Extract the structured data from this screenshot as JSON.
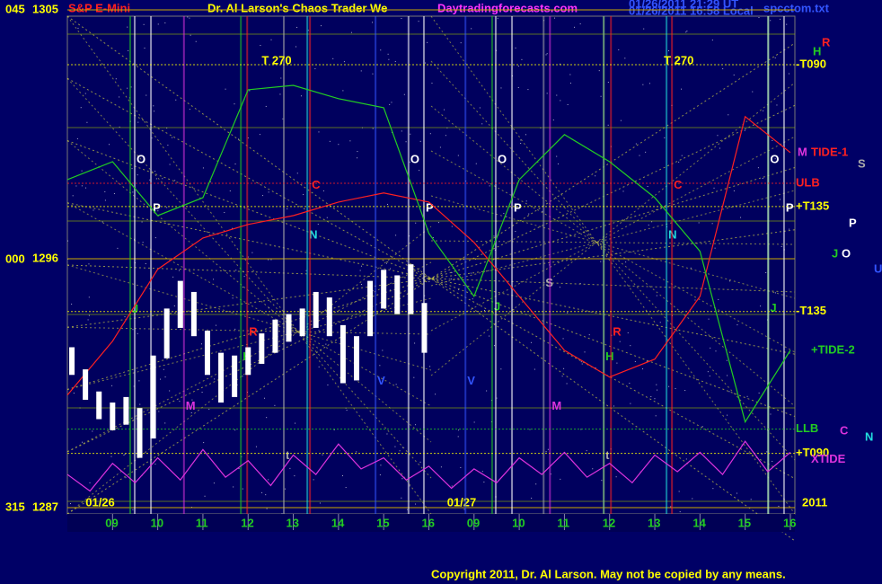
{
  "chart_data": {
    "type": "price-bars",
    "instrument": "S&P E-Mini",
    "title": "Dr. Al Larson's Chaos Trader We",
    "site": "Daytradingforecasts.com",
    "timestamps": [
      "01/26/2011 21:29 UT",
      "01/26/2011 16:58 Local"
    ],
    "file": "spcctom.txt",
    "copyright": "Copyright 2011, Dr. Al Larson. May not be copied by any means.",
    "year": "2011",
    "xlim": [
      0,
      16.1
    ],
    "ylim": [
      1287,
      1305
    ],
    "yticks": [
      1305,
      1296,
      1287
    ],
    "angle_labels": [
      "045",
      "000",
      "315"
    ],
    "xticks": [
      {
        "value": 1,
        "label": "09"
      },
      {
        "value": 2,
        "label": "10"
      },
      {
        "value": 3,
        "label": "11"
      },
      {
        "value": 4,
        "label": "12"
      },
      {
        "value": 5,
        "label": "13"
      },
      {
        "value": 6,
        "label": "14"
      },
      {
        "value": 7,
        "label": "15"
      },
      {
        "value": 8,
        "label": "16"
      },
      {
        "value": 9,
        "label": "09"
      },
      {
        "value": 10,
        "label": "10"
      },
      {
        "value": 11,
        "label": "11"
      },
      {
        "value": 12,
        "label": "12"
      },
      {
        "value": 13,
        "label": "13"
      },
      {
        "value": 14,
        "label": "14"
      },
      {
        "value": 15,
        "label": "15"
      },
      {
        "value": 16,
        "label": "16"
      }
    ],
    "dates": [
      {
        "value": 0.8,
        "label": "01/26"
      },
      {
        "value": 8.8,
        "label": "01/27"
      }
    ],
    "grid": true,
    "price": {
      "color": "#ffffff",
      "x": [
        0.1,
        0.4,
        0.7,
        1.0,
        1.3,
        1.6,
        1.9,
        2.2,
        2.5,
        2.8,
        3.1,
        3.4,
        3.7,
        4.0,
        4.3,
        4.6,
        4.9,
        5.2,
        5.5,
        5.8,
        6.1,
        6.4,
        6.7,
        7.0,
        7.3,
        7.6,
        7.9
      ],
      "high": [
        1292.8,
        1292.0,
        1291.2,
        1290.8,
        1291.0,
        1290.6,
        1292.5,
        1294.2,
        1295.2,
        1294.8,
        1293.4,
        1292.6,
        1292.5,
        1292.8,
        1293.3,
        1293.8,
        1294.0,
        1294.2,
        1294.8,
        1294.6,
        1293.6,
        1293.2,
        1295.2,
        1295.6,
        1295.4,
        1295.8,
        1294.4
      ],
      "low": [
        1291.8,
        1290.9,
        1290.2,
        1289.8,
        1290.0,
        1288.8,
        1289.5,
        1292.4,
        1293.5,
        1293.2,
        1291.8,
        1290.8,
        1291.0,
        1291.8,
        1292.2,
        1292.6,
        1293.0,
        1293.2,
        1293.5,
        1293.2,
        1291.5,
        1291.6,
        1293.2,
        1294.2,
        1294.0,
        1294.0,
        1292.6
      ]
    },
    "series": [
      {
        "name": "TIDE-1",
        "color": "#ff2020",
        "x": [
          0,
          1,
          2,
          3,
          4,
          5,
          6,
          7,
          8,
          9,
          10,
          11,
          12,
          13,
          14,
          15,
          16
        ],
        "values": [
          1291.07,
          1293.02,
          1295.62,
          1296.75,
          1297.24,
          1297.56,
          1298.05,
          1298.38,
          1298.05,
          1296.59,
          1294.64,
          1292.69,
          1291.72,
          1292.37,
          1294.64,
          1301.14,
          1299.84
        ]
      },
      {
        "name": "+TIDE-2",
        "color": "#22cc22",
        "x": [
          0,
          1,
          2,
          3,
          4,
          5,
          6,
          7,
          8,
          9,
          10,
          11,
          12,
          13,
          14,
          15,
          16
        ],
        "values": [
          1298.86,
          1299.51,
          1297.56,
          1298.21,
          1302.11,
          1302.27,
          1301.79,
          1301.46,
          1296.92,
          1294.64,
          1298.86,
          1300.49,
          1299.51,
          1298.21,
          1296.27,
          1290.1,
          1292.69
        ]
      },
      {
        "name": "XTIDE",
        "color": "#dd33dd",
        "x": [
          0,
          0.5,
          1,
          1.5,
          2,
          2.5,
          3,
          3.5,
          4,
          4.5,
          5,
          5.5,
          6,
          6.5,
          7,
          7.5,
          8,
          8.5,
          9,
          9.5,
          10,
          10.5,
          11,
          11.5,
          12,
          12.5,
          13,
          13.5,
          14,
          14.5,
          15,
          15.5,
          16
        ],
        "values": [
          1288.2,
          1287.6,
          1288.6,
          1287.9,
          1288.8,
          1288.0,
          1289.1,
          1288.1,
          1288.7,
          1287.8,
          1288.9,
          1288.2,
          1289.3,
          1288.4,
          1288.8,
          1288.0,
          1288.5,
          1287.7,
          1288.4,
          1287.9,
          1288.8,
          1288.2,
          1289.0,
          1288.1,
          1288.6,
          1287.9,
          1288.9,
          1288.3,
          1289.0,
          1288.2,
          1289.4,
          1288.3,
          1289.0
        ]
      }
    ],
    "levels": [
      {
        "label": "-T090",
        "value": 1303.02,
        "color": "#ffff00"
      },
      {
        "label": "ULB",
        "value": 1298.73,
        "color": "#ff2020"
      },
      {
        "label": "+T135",
        "value": 1297.89,
        "color": "#ffff00"
      },
      {
        "label": "-T135",
        "value": 1294.09,
        "color": "#ffff00"
      },
      {
        "label": "LLB",
        "value": 1289.84,
        "color": "#22cc22"
      },
      {
        "label": "+T090",
        "value": 1288.96,
        "color": "#ffff00"
      }
    ],
    "events": [
      {
        "label": "O",
        "x": 1.49,
        "y": 1299.58,
        "color": "#ffffff"
      },
      {
        "label": "P",
        "x": 1.85,
        "y": 1297.82,
        "color": "#ffffff"
      },
      {
        "label": "J",
        "x": 1.39,
        "y": 1294.16,
        "color": "#22cc22"
      },
      {
        "label": "M",
        "x": 2.58,
        "y": 1290.65,
        "color": "#dd33dd"
      },
      {
        "label": "H",
        "x": 3.84,
        "y": 1292.44,
        "color": "#22cc22"
      },
      {
        "label": "R",
        "x": 3.98,
        "y": 1293.34,
        "color": "#ff2020"
      },
      {
        "label": "t",
        "x": 4.79,
        "y": 1288.86,
        "color": "#aaaaaa"
      },
      {
        "label": "N",
        "x": 5.31,
        "y": 1296.85,
        "color": "#22dddd"
      },
      {
        "label": "C",
        "x": 5.37,
        "y": 1298.64,
        "color": "#ff2020"
      },
      {
        "label": "V",
        "x": 6.82,
        "y": 1291.56,
        "color": "#3355ff"
      },
      {
        "label": "O",
        "x": 7.55,
        "y": 1299.58,
        "color": "#ffffff"
      },
      {
        "label": "P",
        "x": 7.89,
        "y": 1297.82,
        "color": "#ffffff"
      },
      {
        "label": "V",
        "x": 8.81,
        "y": 1291.56,
        "color": "#3355ff"
      },
      {
        "label": "J",
        "x": 9.4,
        "y": 1294.25,
        "color": "#22cc22"
      },
      {
        "label": "O",
        "x": 9.48,
        "y": 1299.58,
        "color": "#ffffff"
      },
      {
        "label": "P",
        "x": 9.84,
        "y": 1297.82,
        "color": "#ffffff"
      },
      {
        "label": "S",
        "x": 10.54,
        "y": 1295.1,
        "color": "#aaaaaa"
      },
      {
        "label": "M",
        "x": 10.68,
        "y": 1290.65,
        "color": "#dd33dd"
      },
      {
        "label": "H",
        "x": 11.87,
        "y": 1292.44,
        "color": "#22cc22"
      },
      {
        "label": "t",
        "x": 11.87,
        "y": 1288.86,
        "color": "#aaaaaa"
      },
      {
        "label": "R",
        "x": 12.03,
        "y": 1293.34,
        "color": "#ff2020"
      },
      {
        "label": "N",
        "x": 13.26,
        "y": 1296.85,
        "color": "#22dddd"
      },
      {
        "label": "C",
        "x": 13.38,
        "y": 1298.64,
        "color": "#ff2020"
      },
      {
        "label": "J",
        "x": 15.51,
        "y": 1294.2,
        "color": "#22cc22"
      },
      {
        "label": "O",
        "x": 15.51,
        "y": 1299.58,
        "color": "#ffffff"
      },
      {
        "label": "P",
        "x": 15.86,
        "y": 1297.82,
        "color": "#ffffff"
      }
    ],
    "time_marks": [
      {
        "label": "T  270",
        "x": 4.3
      },
      {
        "label": "T  270",
        "x": 13.2
      }
    ],
    "side_labels": [
      {
        "label": "H",
        "color": "#22cc22"
      },
      {
        "label": "R",
        "color": "#ff2020"
      },
      {
        "label": "M",
        "color": "#dd33dd"
      },
      {
        "label": "S",
        "color": "#aaaaaa"
      },
      {
        "label": "P",
        "color": "#ffffff"
      },
      {
        "label": "J",
        "color": "#22cc22"
      },
      {
        "label": "O",
        "color": "#ffffff"
      },
      {
        "label": "U",
        "color": "#3355ff"
      },
      {
        "label": "C",
        "color": "#dd33dd"
      },
      {
        "label": "N",
        "color": "#22dddd"
      }
    ]
  }
}
